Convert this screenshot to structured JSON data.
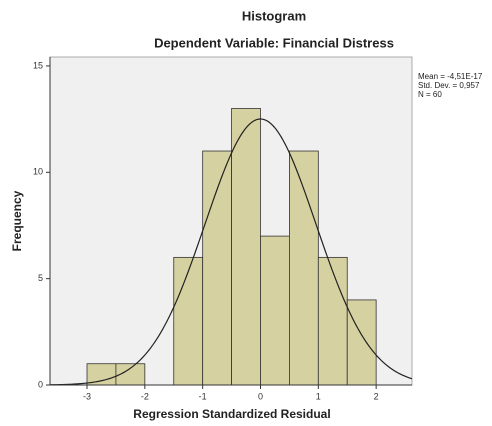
{
  "chart_data": {
    "type": "histogram",
    "title": "Histogram",
    "subtitle": "Dependent Variable: Financial Distress",
    "x_label": "Regression Standardized Residual",
    "y_label": "Frequency",
    "bins": [
      -3,
      -2.5,
      -2,
      -1.5,
      -1,
      -0.5,
      0,
      0.5,
      1,
      1.5,
      2
    ],
    "counts": [
      1,
      1,
      0,
      6,
      11,
      13,
      7,
      11,
      6,
      4
    ],
    "color": "#d6d1a0",
    "edge_color": "#333333",
    "background": "#f0f0f0",
    "curve_color": "#222222",
    "xlim": [
      -3.64,
      2.62
    ],
    "xticks": [
      -3,
      -2,
      -1,
      0,
      1,
      2
    ],
    "ylim": [
      0,
      15.42
    ],
    "yticks": [
      0,
      5,
      10,
      15
    ],
    "grid": false,
    "stats": [
      {
        "label": "Mean = -4,51E-17",
        "value": -4.51e-17
      },
      {
        "label": "Std. Dev. = 0,957",
        "value": 0.957
      },
      {
        "label": "N = 60",
        "value": 60
      }
    ]
  }
}
